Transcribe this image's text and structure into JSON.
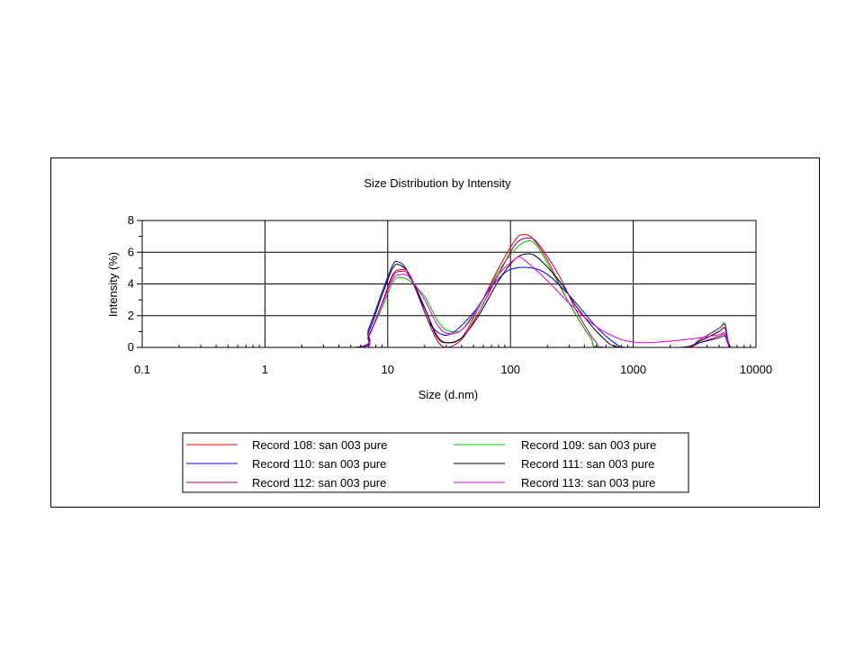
{
  "chart_data": {
    "type": "line",
    "title": "Size Distribution by Intensity",
    "xlabel": "Size (d.nm)",
    "ylabel": "Intensity (%)",
    "xscale": "log",
    "xlim": [
      0.1,
      10000
    ],
    "ylim": [
      0,
      8
    ],
    "xticks": [
      "0.1",
      "1",
      "10",
      "100",
      "1000",
      "10000"
    ],
    "yticks": [
      "0",
      "2",
      "4",
      "6",
      "8"
    ],
    "grid": true,
    "legend_position": "bottom",
    "series": [
      {
        "name": "Record 108: san 003 pure",
        "color": "#e00000",
        "points": [
          [
            0.4,
            0
          ],
          [
            5.5,
            0
          ],
          [
            7,
            0.8
          ],
          [
            9,
            2.8
          ],
          [
            11,
            4.5
          ],
          [
            13,
            4.8
          ],
          [
            15,
            4.5
          ],
          [
            20,
            2.5
          ],
          [
            25,
            0.8
          ],
          [
            30,
            0.3
          ],
          [
            40,
            0.6
          ],
          [
            55,
            2.5
          ],
          [
            80,
            5
          ],
          [
            110,
            6.8
          ],
          [
            125,
            7.1
          ],
          [
            150,
            6.9
          ],
          [
            200,
            5.5
          ],
          [
            300,
            2.8
          ],
          [
            450,
            0.6
          ],
          [
            550,
            0
          ],
          [
            2500,
            0
          ],
          [
            3500,
            0.3
          ],
          [
            5000,
            0.7
          ],
          [
            5600,
            0.8
          ],
          [
            6300,
            0
          ],
          [
            10000,
            0
          ]
        ]
      },
      {
        "name": "Record 109: san 003 pure",
        "color": "#00c000",
        "points": [
          [
            0.4,
            0
          ],
          [
            5.5,
            0
          ],
          [
            7,
            0.8
          ],
          [
            9,
            2.5
          ],
          [
            11,
            4.1
          ],
          [
            12.5,
            4.4
          ],
          [
            15,
            4.2
          ],
          [
            20,
            3.2
          ],
          [
            25,
            1.8
          ],
          [
            30,
            1.1
          ],
          [
            40,
            1.1
          ],
          [
            55,
            2.5
          ],
          [
            80,
            4.8
          ],
          [
            110,
            6.2
          ],
          [
            135,
            6.7
          ],
          [
            160,
            6.5
          ],
          [
            200,
            5.3
          ],
          [
            300,
            2.8
          ],
          [
            450,
            0.6
          ],
          [
            550,
            0
          ],
          [
            2500,
            0
          ],
          [
            3500,
            0.5
          ],
          [
            5000,
            1.2
          ],
          [
            5600,
            1.5
          ],
          [
            6300,
            0
          ],
          [
            10000,
            0
          ]
        ]
      },
      {
        "name": "Record 110: san 003 pure",
        "color": "#0000e0",
        "points": [
          [
            0.4,
            0
          ],
          [
            5.5,
            0
          ],
          [
            7,
            1.2
          ],
          [
            9,
            3.5
          ],
          [
            11,
            5.2
          ],
          [
            12,
            5.4
          ],
          [
            14,
            5
          ],
          [
            18,
            3.2
          ],
          [
            22,
            1.5
          ],
          [
            28,
            0.8
          ],
          [
            35,
            1
          ],
          [
            50,
            2.2
          ],
          [
            70,
            3.8
          ],
          [
            90,
            4.7
          ],
          [
            110,
            5
          ],
          [
            150,
            5
          ],
          [
            200,
            4.6
          ],
          [
            300,
            3.3
          ],
          [
            500,
            1.3
          ],
          [
            700,
            0.3
          ],
          [
            900,
            0
          ],
          [
            2500,
            0
          ],
          [
            3500,
            0.3
          ],
          [
            5000,
            0.6
          ],
          [
            5600,
            0.7
          ],
          [
            6300,
            0
          ],
          [
            10000,
            0
          ]
        ]
      },
      {
        "name": "Record 111: san 003 pure",
        "color": "#000000",
        "points": [
          [
            0.4,
            0
          ],
          [
            5.5,
            0
          ],
          [
            7,
            1
          ],
          [
            9,
            3.3
          ],
          [
            11,
            5
          ],
          [
            12.5,
            5.2
          ],
          [
            15,
            4.6
          ],
          [
            20,
            2.5
          ],
          [
            25,
            0.7
          ],
          [
            30,
            0.3
          ],
          [
            40,
            0.6
          ],
          [
            55,
            2
          ],
          [
            80,
            4.2
          ],
          [
            110,
            5.6
          ],
          [
            140,
            5.9
          ],
          [
            170,
            5.6
          ],
          [
            250,
            4.2
          ],
          [
            350,
            2.5
          ],
          [
            550,
            0.7
          ],
          [
            800,
            0
          ],
          [
            2500,
            0
          ],
          [
            3500,
            0.4
          ],
          [
            5000,
            1
          ],
          [
            5600,
            1.2
          ],
          [
            6300,
            0
          ],
          [
            10000,
            0
          ]
        ]
      },
      {
        "name": "Record 112: san 003 pure",
        "color": "#a00080",
        "points": [
          [
            0.4,
            0
          ],
          [
            5.5,
            0
          ],
          [
            7,
            0.7
          ],
          [
            9,
            2.8
          ],
          [
            11,
            4.6
          ],
          [
            13,
            4.9
          ],
          [
            15,
            4.6
          ],
          [
            20,
            2.2
          ],
          [
            25,
            0.5
          ],
          [
            30,
            0
          ],
          [
            40,
            0.5
          ],
          [
            55,
            2.2
          ],
          [
            80,
            4.6
          ],
          [
            110,
            6.5
          ],
          [
            140,
            6.9
          ],
          [
            170,
            6.5
          ],
          [
            250,
            4.5
          ],
          [
            350,
            2.2
          ],
          [
            500,
            0.3
          ],
          [
            600,
            0
          ],
          [
            2500,
            0
          ],
          [
            3500,
            0.5
          ],
          [
            5000,
            1.2
          ],
          [
            5600,
            1.4
          ],
          [
            6300,
            0
          ],
          [
            10000,
            0
          ]
        ]
      },
      {
        "name": "Record 113: san 003 pure",
        "color": "#e000e0",
        "points": [
          [
            0.4,
            0
          ],
          [
            5.5,
            0
          ],
          [
            7,
            0.8
          ],
          [
            9,
            2.7
          ],
          [
            11,
            4.3
          ],
          [
            13,
            4.6
          ],
          [
            15,
            4.4
          ],
          [
            20,
            3
          ],
          [
            25,
            1.5
          ],
          [
            30,
            0.9
          ],
          [
            40,
            1.1
          ],
          [
            55,
            2.6
          ],
          [
            80,
            4.6
          ],
          [
            110,
            5.6
          ],
          [
            120,
            5.7
          ],
          [
            150,
            5.1
          ],
          [
            200,
            4.2
          ],
          [
            300,
            2.8
          ],
          [
            500,
            1.3
          ],
          [
            800,
            0.5
          ],
          [
            1200,
            0.3
          ],
          [
            2000,
            0.4
          ],
          [
            3500,
            0.6
          ],
          [
            5000,
            0.8
          ],
          [
            5600,
            0.9
          ],
          [
            6300,
            0
          ],
          [
            10000,
            0
          ]
        ]
      }
    ]
  }
}
